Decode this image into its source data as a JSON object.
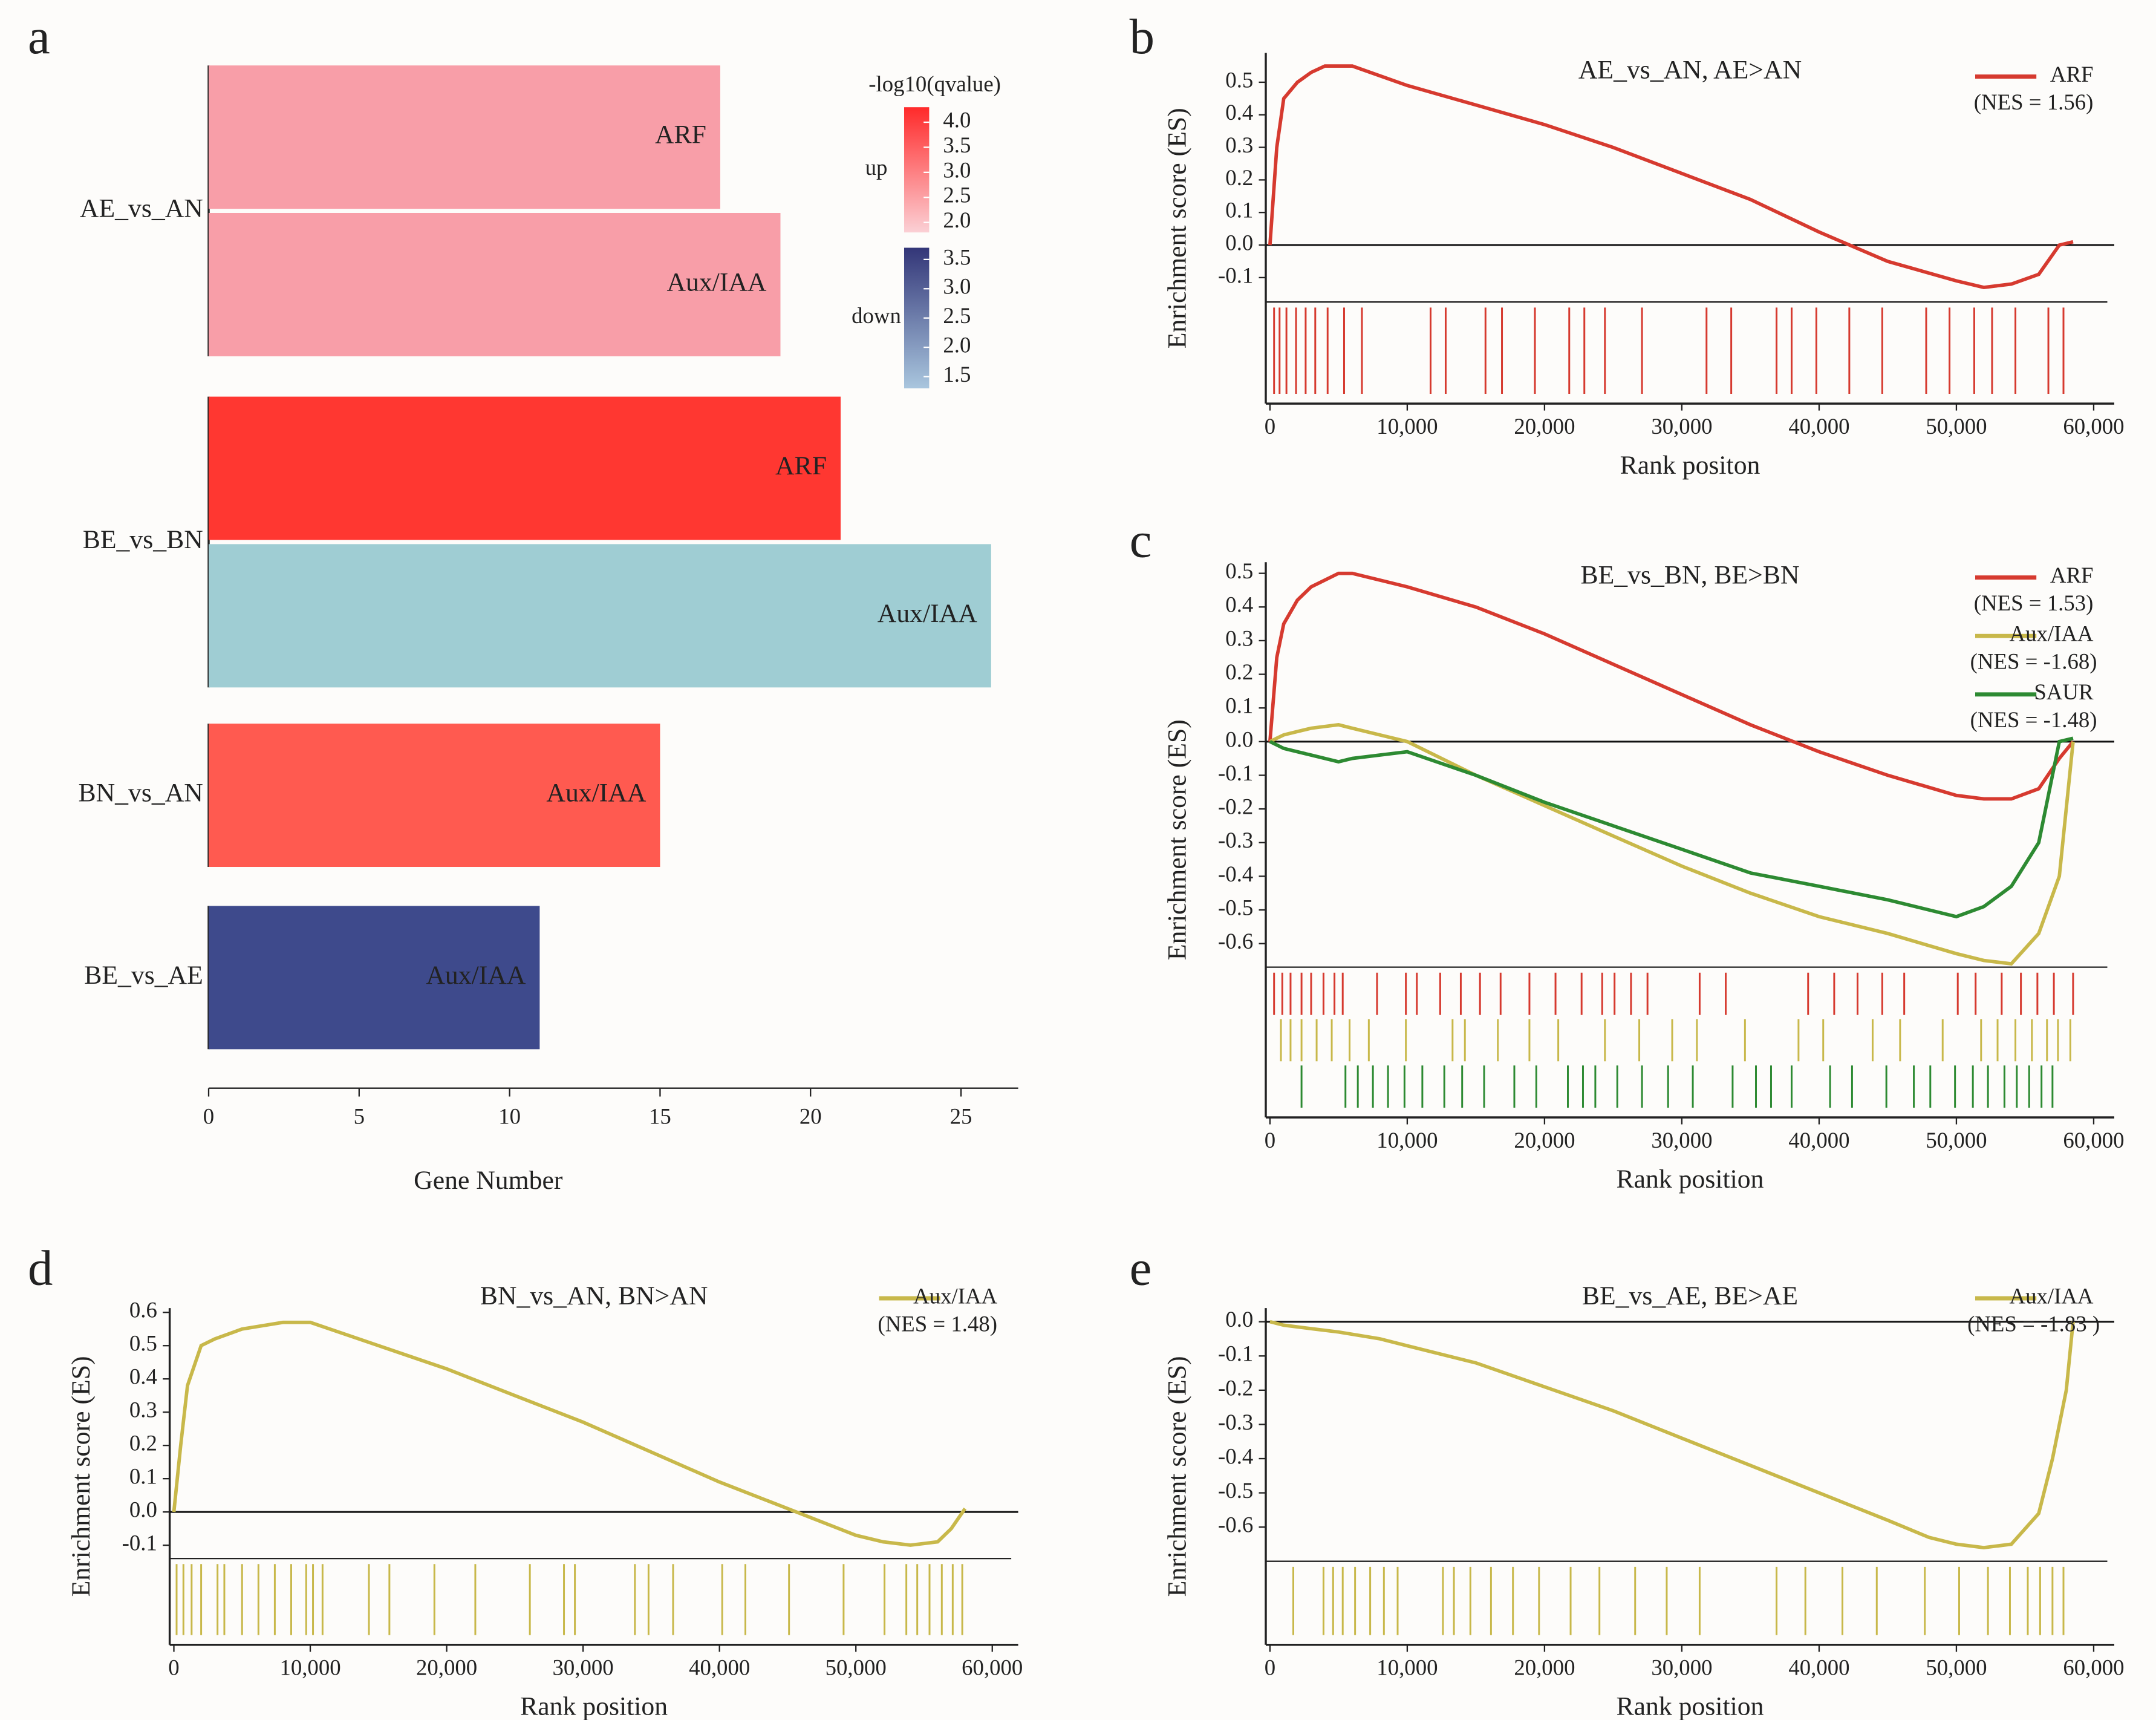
{
  "chart_data": [
    {
      "type": "bar",
      "panel_label": "a",
      "orientation": "horizontal",
      "xlabel": "Gene Number",
      "xlim": [
        0,
        26.9
      ],
      "xticks": [
        0,
        5,
        10,
        15,
        20,
        25
      ],
      "groups": [
        {
          "name": "AE_vs_AN",
          "bars": [
            {
              "label": "ARF",
              "value": 17,
              "color": "#f89ea8"
            },
            {
              "label": "Aux/IAA",
              "value": 19,
              "color": "#f89ea8"
            }
          ]
        },
        {
          "name": "BE_vs_BN",
          "bars": [
            {
              "label": "ARF",
              "value": 21,
              "color": "#ff3731"
            },
            {
              "label": "Aux/IAA",
              "value": 26,
              "color": "#9fcdd3"
            }
          ]
        },
        {
          "name": "BN_vs_AN",
          "bars": [
            {
              "label": "Aux/IAA",
              "value": 15,
              "color": "#ff5a50"
            }
          ]
        },
        {
          "name": "BE_vs_AE",
          "bars": [
            {
              "label": "Aux/IAA",
              "value": 11,
              "color": "#3e4a8c"
            }
          ]
        }
      ],
      "colorbar": {
        "title": "-log10(qvalue)",
        "scales": [
          {
            "name": "up",
            "colors": [
              "#fbd0d5",
              "#ff2a2a"
            ],
            "lim": [
              1.8,
              4.3
            ],
            "ticks": [
              {
                "value": 2,
                "label": "2.0"
              },
              2.5,
              {
                "value": 3,
                "label": "3.0"
              },
              3.5,
              {
                "value": 4,
                "label": "4.0"
              }
            ]
          },
          {
            "name": "down",
            "colors": [
              "#a9c6de",
              "#333678"
            ],
            "lim": [
              1.3,
              3.7
            ],
            "ticks": [
              1.5,
              {
                "value": 2,
                "label": "2.0"
              },
              2.5,
              {
                "value": 3,
                "label": "3.0"
              },
              3.5
            ]
          }
        ]
      }
    },
    {
      "type": "line",
      "panel_label": "b",
      "title": "AE_vs_AN, AE>AN",
      "xlabel": "Rank positon",
      "ylabel": "Enrichment score (ES)",
      "xlim": [
        0,
        61500
      ],
      "ylim": [
        -0.175,
        0.59
      ],
      "xticks": [
        0,
        {
          "value": 10000,
          "label": "10,000"
        },
        {
          "value": 20000,
          "label": "20,000"
        },
        {
          "value": 30000,
          "label": "30,000"
        },
        {
          "value": 40000,
          "label": "40,000"
        },
        {
          "value": 50000,
          "label": "50,000"
        },
        {
          "value": 60000,
          "label": "60,000"
        }
      ],
      "yticks": [
        0.5,
        0.4,
        0.3,
        0.2,
        0.1,
        {
          "value": 0,
          "label": "0.0"
        },
        -0.1
      ],
      "x": [
        0,
        500,
        1000,
        2000,
        3000,
        4000,
        6000,
        10000,
        15000,
        20000,
        25000,
        30000,
        35000,
        40000,
        45000,
        50000,
        52000,
        54000,
        56000,
        57500,
        58500
      ],
      "series": [
        {
          "name": "ARF",
          "nes_label": "(NES = 1.56)",
          "color": "#d63a2f",
          "values": [
            0,
            0.3,
            0.45,
            0.5,
            0.53,
            0.55,
            0.55,
            0.49,
            0.43,
            0.37,
            0.3,
            0.22,
            0.14,
            0.04,
            -0.05,
            -0.11,
            -0.13,
            -0.12,
            -0.09,
            0.0,
            0.01
          ],
          "hits": [
            300,
            700,
            1200,
            1900,
            2600,
            3300,
            4200,
            5400,
            6700,
            11700,
            12800,
            15700,
            16900,
            19300,
            21800,
            22900,
            24400,
            27100,
            31800,
            33600,
            36900,
            38000,
            39800,
            42200,
            44600,
            47800,
            49500,
            51300,
            52600,
            54300,
            56700,
            57800
          ]
        }
      ]
    },
    {
      "type": "line",
      "panel_label": "c",
      "title": "BE_vs_BN, BE>BN",
      "xlabel": "Rank position",
      "ylabel": "Enrichment score (ES)",
      "xlim": [
        0,
        61500
      ],
      "ylim": [
        -0.67,
        0.533
      ],
      "xticks": [
        0,
        {
          "value": 10000,
          "label": "10,000"
        },
        {
          "value": 20000,
          "label": "20,000"
        },
        {
          "value": 30000,
          "label": "30,000"
        },
        {
          "value": 40000,
          "label": "40,000"
        },
        {
          "value": 50000,
          "label": "50,000"
        },
        {
          "value": 60000,
          "label": "60,000"
        }
      ],
      "yticks": [
        0.5,
        0.4,
        0.3,
        0.2,
        0.1,
        {
          "value": 0,
          "label": "0.0"
        },
        -0.1,
        -0.2,
        -0.3,
        -0.4,
        -0.5,
        -0.6
      ],
      "x": [
        0,
        500,
        1000,
        2000,
        3000,
        5000,
        6000,
        10000,
        15000,
        20000,
        25000,
        30000,
        35000,
        40000,
        45000,
        50000,
        52000,
        54000,
        56000,
        57500,
        58500
      ],
      "series": [
        {
          "name": "ARF",
          "nes_label": "(NES = 1.53)",
          "color": "#d63a2f",
          "values": [
            0,
            0.25,
            0.35,
            0.42,
            0.46,
            0.5,
            0.5,
            0.46,
            0.4,
            0.32,
            0.23,
            0.14,
            0.05,
            -0.03,
            -0.1,
            -0.16,
            -0.17,
            -0.17,
            -0.14,
            -0.05,
            0.0
          ],
          "hits": [
            300,
            900,
            1500,
            2300,
            3000,
            3900,
            4700,
            5300,
            7800,
            9900,
            10700,
            12400,
            13900,
            15300,
            16800,
            18900,
            20800,
            22700,
            24200,
            25100,
            26300,
            27500,
            31300,
            33200,
            39200,
            41100,
            42800,
            44600,
            46200,
            50100,
            51400,
            53300,
            54700,
            55900,
            57100,
            58500
          ]
        },
        {
          "name": "Aux/IAA",
          "nes_label": "(NES = -1.68)",
          "color": "#c8b84a",
          "values": [
            0,
            0.01,
            0.02,
            0.03,
            0.04,
            0.05,
            0.04,
            0.0,
            -0.1,
            -0.19,
            -0.28,
            -0.37,
            -0.45,
            -0.52,
            -0.57,
            -0.63,
            -0.65,
            -0.66,
            -0.57,
            -0.4,
            0.0
          ],
          "hits": [
            800,
            1500,
            2300,
            3400,
            4500,
            5800,
            7200,
            9900,
            13300,
            14200,
            16600,
            18900,
            21000,
            24400,
            26900,
            29300,
            31100,
            34600,
            38500,
            40300,
            43900,
            45900,
            49000,
            51800,
            53000,
            54300,
            55500,
            56600,
            57400,
            58300
          ]
        },
        {
          "name": "SAUR",
          "nes_label": "(NES = -1.48)",
          "color": "#2d8a32",
          "values": [
            0,
            -0.01,
            -0.02,
            -0.03,
            -0.04,
            -0.06,
            -0.05,
            -0.03,
            -0.1,
            -0.18,
            -0.25,
            -0.32,
            -0.39,
            -0.43,
            -0.47,
            -0.52,
            -0.49,
            -0.43,
            -0.3,
            0.0,
            0.01
          ],
          "hits": [
            2300,
            5500,
            6400,
            7500,
            8600,
            9800,
            11100,
            12700,
            14000,
            15600,
            17800,
            19400,
            21700,
            22800,
            23700,
            25300,
            27100,
            29000,
            30800,
            33700,
            35400,
            36500,
            38000,
            40800,
            42400,
            44900,
            46900,
            48100,
            49900,
            51200,
            52300,
            53500,
            54400,
            55300,
            56200,
            57000
          ]
        }
      ]
    },
    {
      "type": "line",
      "panel_label": "d",
      "title": "BN_vs_AN, BN>AN",
      "xlabel": "Rank position",
      "ylabel": "Enrichment score (ES)",
      "xlim": [
        0,
        61900
      ],
      "ylim": [
        -0.14,
        0.613
      ],
      "xticks": [
        0,
        {
          "value": 10000,
          "label": "10,000"
        },
        {
          "value": 20000,
          "label": "20,000"
        },
        {
          "value": 30000,
          "label": "30,000"
        },
        {
          "value": 40000,
          "label": "40,000"
        },
        {
          "value": 50000,
          "label": "50,000"
        },
        {
          "value": 60000,
          "label": "60,000"
        }
      ],
      "yticks": [
        0.6,
        0.5,
        0.4,
        0.3,
        0.2,
        0.1,
        {
          "value": 0,
          "label": "0.0"
        },
        -0.1
      ],
      "x": [
        0,
        500,
        1000,
        2000,
        3000,
        5000,
        8000,
        10000,
        15000,
        20000,
        25000,
        30000,
        35000,
        40000,
        45000,
        50000,
        52000,
        54000,
        56000,
        57000,
        58000
      ],
      "series": [
        {
          "name": "Aux/IAA",
          "nes_label": "(NES = 1.48)",
          "color": "#c8b84a",
          "values": [
            0,
            0.2,
            0.38,
            0.5,
            0.52,
            0.55,
            0.57,
            0.57,
            0.5,
            0.43,
            0.35,
            0.27,
            0.18,
            0.09,
            0.01,
            -0.07,
            -0.09,
            -0.1,
            -0.09,
            -0.05,
            0.01
          ],
          "hits": [
            200,
            700,
            1300,
            2000,
            3200,
            3700,
            5000,
            6200,
            7400,
            8600,
            9700,
            10200,
            10900,
            14300,
            15800,
            19100,
            22100,
            26100,
            28600,
            29400,
            33800,
            34800,
            36600,
            40200,
            41900,
            45100,
            49100,
            52100,
            53700,
            54500,
            55400,
            56300,
            57100,
            57800
          ]
        }
      ]
    },
    {
      "type": "line",
      "panel_label": "e",
      "title": "BE_vs_AE, BE>AE",
      "xlabel": "Rank position",
      "ylabel": "Enrichment score (ES)",
      "xlim": [
        0,
        61500
      ],
      "ylim": [
        -0.7,
        0.04
      ],
      "xticks": [
        0,
        {
          "value": 10000,
          "label": "10,000"
        },
        {
          "value": 20000,
          "label": "20,000"
        },
        {
          "value": 30000,
          "label": "30,000"
        },
        {
          "value": 40000,
          "label": "40,000"
        },
        {
          "value": 50000,
          "label": "50,000"
        },
        {
          "value": 60000,
          "label": "60,000"
        }
      ],
      "yticks": [
        {
          "value": 0,
          "label": "0.0"
        },
        -0.1,
        -0.2,
        -0.3,
        -0.4,
        -0.5,
        -0.6
      ],
      "x": [
        0,
        1000,
        3000,
        5000,
        8000,
        10000,
        15000,
        20000,
        25000,
        30000,
        35000,
        40000,
        45000,
        48000,
        50000,
        52000,
        54000,
        56000,
        57000,
        58000,
        58500
      ],
      "series": [
        {
          "name": "Aux/IAA",
          "nes_label": "(NES = -1.83 )",
          "color": "#c8b84a",
          "values": [
            0,
            -0.01,
            -0.02,
            -0.03,
            -0.05,
            -0.07,
            -0.12,
            -0.19,
            -0.26,
            -0.34,
            -0.42,
            -0.5,
            -0.58,
            -0.63,
            -0.65,
            -0.66,
            -0.65,
            -0.56,
            -0.4,
            -0.2,
            0.0
          ],
          "hits": [
            1700,
            3900,
            4600,
            5300,
            6200,
            7300,
            8300,
            9300,
            12600,
            13400,
            14600,
            16100,
            17700,
            19600,
            21900,
            24000,
            26600,
            28900,
            31300,
            36900,
            39000,
            41700,
            44200,
            47700,
            50200,
            52300,
            53900,
            55200,
            56100,
            57000,
            57800
          ]
        }
      ]
    }
  ]
}
